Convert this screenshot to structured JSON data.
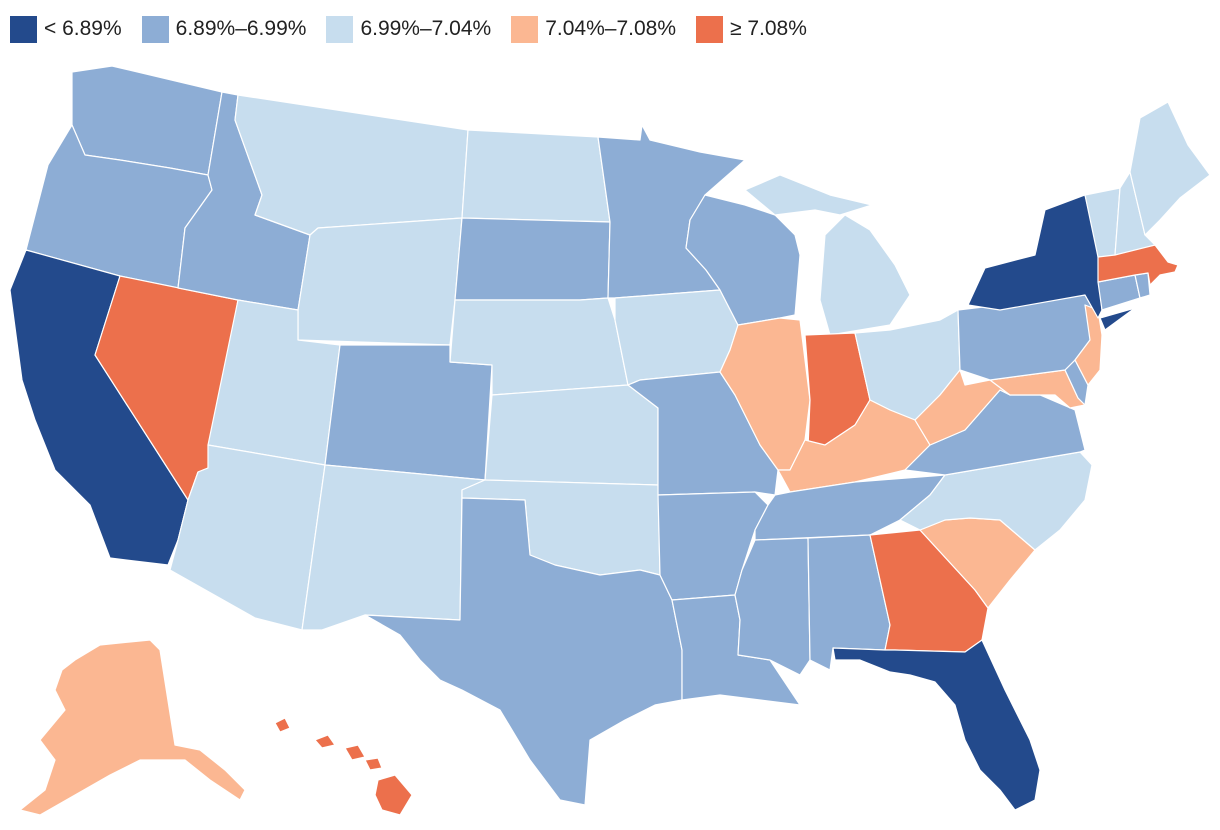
{
  "legend": {
    "items": [
      {
        "label": "< 6.89%",
        "color": "#234a8c"
      },
      {
        "label": "6.89%–6.99%",
        "color": "#8dadd5"
      },
      {
        "label": "6.99%–7.04%",
        "color": "#c7ddee"
      },
      {
        "label": "7.04%–7.08%",
        "color": "#fbb792"
      },
      {
        "label": "≥ 7.08%",
        "color": "#ec704c"
      }
    ]
  },
  "map": {
    "states": [
      {
        "id": "WA",
        "bin": 1
      },
      {
        "id": "OR",
        "bin": 1
      },
      {
        "id": "CA",
        "bin": 0
      },
      {
        "id": "NV",
        "bin": 4
      },
      {
        "id": "ID",
        "bin": 1
      },
      {
        "id": "MT",
        "bin": 2
      },
      {
        "id": "WY",
        "bin": 2
      },
      {
        "id": "UT",
        "bin": 2
      },
      {
        "id": "AZ",
        "bin": 2
      },
      {
        "id": "CO",
        "bin": 1
      },
      {
        "id": "NM",
        "bin": 2
      },
      {
        "id": "ND",
        "bin": 2
      },
      {
        "id": "SD",
        "bin": 1
      },
      {
        "id": "NE",
        "bin": 2
      },
      {
        "id": "KS",
        "bin": 2
      },
      {
        "id": "OK",
        "bin": 2
      },
      {
        "id": "TX",
        "bin": 1
      },
      {
        "id": "MN",
        "bin": 1
      },
      {
        "id": "IA",
        "bin": 2
      },
      {
        "id": "MO",
        "bin": 1
      },
      {
        "id": "AR",
        "bin": 1
      },
      {
        "id": "LA",
        "bin": 1
      },
      {
        "id": "WI",
        "bin": 1
      },
      {
        "id": "IL",
        "bin": 3
      },
      {
        "id": "MI",
        "bin": 2
      },
      {
        "id": "IN",
        "bin": 4
      },
      {
        "id": "OH",
        "bin": 2
      },
      {
        "id": "KY",
        "bin": 3
      },
      {
        "id": "TN",
        "bin": 1
      },
      {
        "id": "MS",
        "bin": 1
      },
      {
        "id": "AL",
        "bin": 1
      },
      {
        "id": "GA",
        "bin": 4
      },
      {
        "id": "FL",
        "bin": 0
      },
      {
        "id": "SC",
        "bin": 3
      },
      {
        "id": "NC",
        "bin": 2
      },
      {
        "id": "VA",
        "bin": 1
      },
      {
        "id": "WV",
        "bin": 3
      },
      {
        "id": "PA",
        "bin": 1
      },
      {
        "id": "NY",
        "bin": 0
      },
      {
        "id": "NJ",
        "bin": 3
      },
      {
        "id": "DE",
        "bin": 1
      },
      {
        "id": "MD",
        "bin": 3
      },
      {
        "id": "CT",
        "bin": 1
      },
      {
        "id": "RI",
        "bin": 1
      },
      {
        "id": "MA",
        "bin": 4
      },
      {
        "id": "VT",
        "bin": 2
      },
      {
        "id": "NH",
        "bin": 2
      },
      {
        "id": "ME",
        "bin": 2
      },
      {
        "id": "AK",
        "bin": 3
      },
      {
        "id": "HI",
        "bin": 4
      }
    ]
  }
}
